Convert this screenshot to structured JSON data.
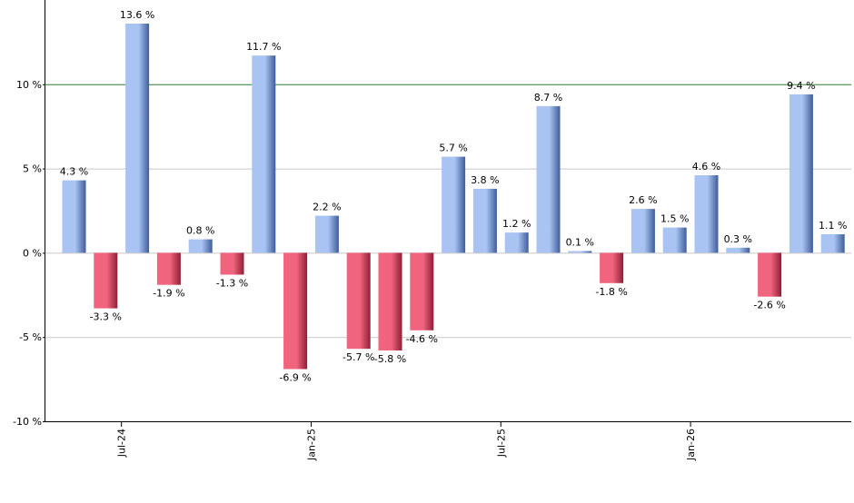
{
  "chart_data": {
    "type": "bar",
    "title": "",
    "xlabel": "",
    "ylabel": "",
    "ylim": [
      -10,
      15
    ],
    "y_ticks": [
      -10,
      -5,
      0,
      5,
      10
    ],
    "y_tick_labels": [
      "-10 %",
      "-5 %",
      "0 %",
      "5 %",
      "10 %"
    ],
    "grid": true,
    "reference_line": {
      "value": 10,
      "color": "#2e7d32"
    },
    "x_tick_labels": [
      {
        "after_bar_index": 1.5,
        "label": "Jul-24"
      },
      {
        "after_bar_index": 7.5,
        "label": "Jan-25"
      },
      {
        "after_bar_index": 13.5,
        "label": "Jul-25"
      },
      {
        "after_bar_index": 19.5,
        "label": "Jan-26"
      }
    ],
    "values": [
      4.3,
      -3.3,
      13.6,
      -1.9,
      0.8,
      -1.3,
      11.7,
      -6.9,
      2.2,
      -5.7,
      -5.8,
      -4.6,
      5.7,
      3.8,
      1.2,
      8.7,
      0.1,
      -1.8,
      2.6,
      1.5,
      4.6,
      0.3,
      -2.6,
      9.4,
      1.1
    ],
    "value_labels": [
      "4.3 %",
      "-3.3 %",
      "13.6 %",
      "-1.9 %",
      "0.8 %",
      "-1.3 %",
      "11.7 %",
      "-6.9 %",
      "2.2 %",
      "-5.7 %",
      "-5.8 %",
      "-4.6 %",
      "5.7 %",
      "3.8 %",
      "1.2 %",
      "8.7 %",
      "0.1 %",
      "-1.8 %",
      "2.6 %",
      "1.5 %",
      "4.6 %",
      "0.3 %",
      "-2.6 %",
      "9.4 %",
      "1.1 %"
    ],
    "colors": {
      "positive_light": "#a9c3f2",
      "positive_dark": "#3f5d9a",
      "negative_light": "#f0647e",
      "negative_dark": "#8f1f35",
      "grid": "#c8c8c8",
      "axis": "#000000"
    }
  }
}
